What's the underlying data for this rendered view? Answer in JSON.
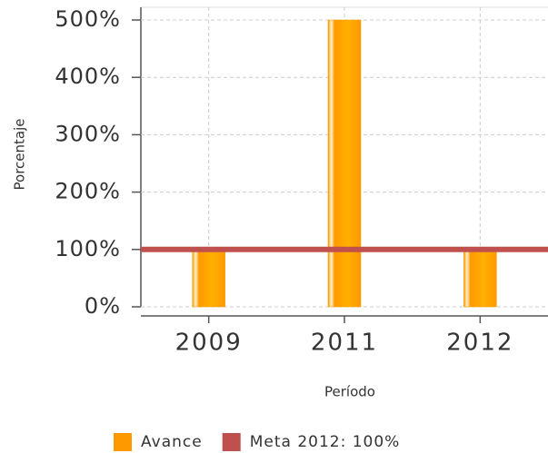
{
  "chart_data": {
    "type": "bar",
    "x_label": "Período",
    "y_label": "Porcentaje",
    "categories": [
      "2009",
      "2011",
      "2012"
    ],
    "series": [
      {
        "name": "Avance",
        "color": "#ff9900",
        "values": [
          100,
          500,
          100
        ]
      }
    ],
    "reference_lines": [
      {
        "name": "Meta 2012: 100%",
        "color": "#c0504d",
        "value": 100
      }
    ],
    "ylim": [
      0,
      500
    ],
    "yticks": [
      {
        "value": 0,
        "label": "0%"
      },
      {
        "value": 100,
        "label": "100%"
      },
      {
        "value": 200,
        "label": "200%"
      },
      {
        "value": 300,
        "label": "300%"
      },
      {
        "value": 400,
        "label": "400%"
      },
      {
        "value": 500,
        "label": "500%"
      }
    ],
    "grid": true,
    "legend": "bottom"
  }
}
